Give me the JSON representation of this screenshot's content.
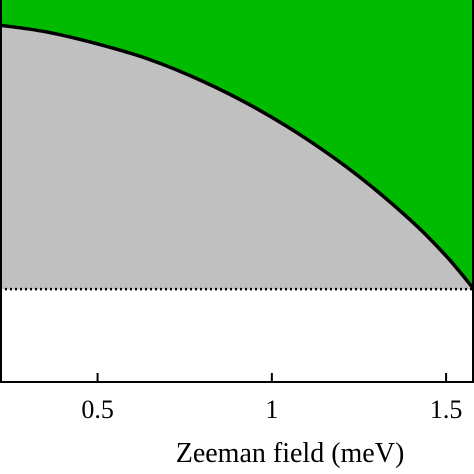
{
  "chart_data": {
    "type": "area",
    "xlabel": "Zeeman field (meV)",
    "ylabel": "",
    "title": "",
    "xlim": [
      0.22,
      1.58
    ],
    "ylim": [
      0,
      1
    ],
    "x_ticks": [
      0.5,
      1,
      1.5
    ],
    "x_tick_labels": [
      "0.5",
      "1",
      "1.5"
    ],
    "boundary_curve": {
      "x": [
        0.22,
        0.35,
        0.5,
        0.65,
        0.8,
        0.95,
        1.1,
        1.25,
        1.4,
        1.5,
        1.58
      ],
      "y": [
        0.934,
        0.917,
        0.885,
        0.844,
        0.788,
        0.719,
        0.636,
        0.538,
        0.422,
        0.33,
        0.243
      ]
    },
    "dotted_line_y": 0.243,
    "colors": {
      "upper_region": "#00bb00",
      "lower_region": "#c0c0c0",
      "curve": "#000000",
      "dotted_line": "#000000"
    }
  }
}
